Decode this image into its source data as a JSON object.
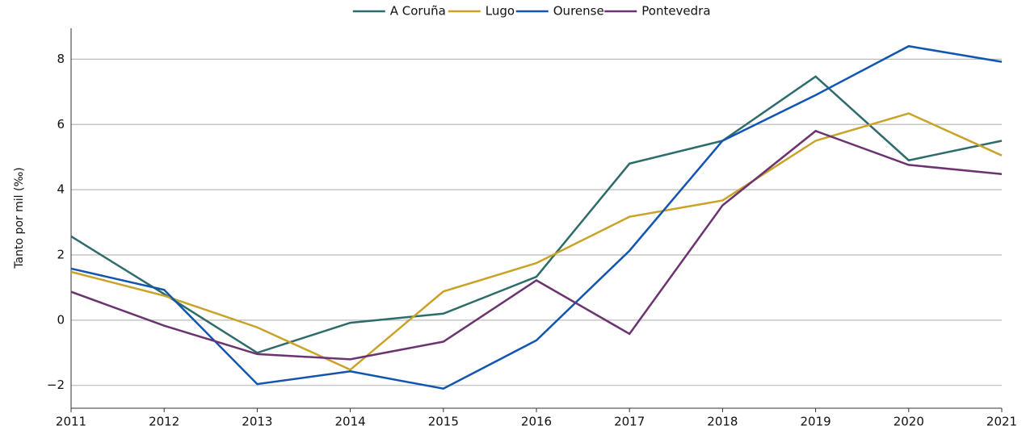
{
  "chart_data": {
    "type": "line",
    "y_label": "Tanto por mil (‰)",
    "x": [
      2011,
      2012,
      2013,
      2014,
      2015,
      2016,
      2017,
      2018,
      2019,
      2020,
      2021
    ],
    "series": [
      {
        "name": "A Coruña",
        "color": "#2e6b6b",
        "values": [
          2.57,
          0.8,
          -1.0,
          -0.08,
          0.2,
          1.33,
          4.8,
          5.5,
          7.47,
          4.9,
          5.5
        ]
      },
      {
        "name": "Lugo",
        "color": "#c9a227",
        "values": [
          1.48,
          0.75,
          -0.22,
          -1.52,
          0.88,
          1.75,
          3.17,
          3.67,
          5.5,
          6.34,
          5.05
        ]
      },
      {
        "name": "Ourense",
        "color": "#1155b0",
        "values": [
          1.58,
          0.93,
          -1.96,
          -1.57,
          -2.1,
          -0.62,
          2.13,
          5.5,
          6.9,
          8.4,
          7.92
        ]
      },
      {
        "name": "Pontevedra",
        "color": "#6b3370",
        "values": [
          0.87,
          -0.17,
          -1.04,
          -1.2,
          -0.66,
          1.22,
          -0.42,
          3.52,
          5.8,
          4.76,
          4.48
        ]
      }
    ],
    "xlim": [
      2011,
      2021
    ],
    "xticks": [
      2011,
      2012,
      2013,
      2014,
      2015,
      2016,
      2017,
      2018,
      2019,
      2020,
      2021
    ],
    "ylim": [
      -2.7,
      8.95
    ],
    "yticks": [
      {
        "value": -2,
        "label": "−2"
      },
      0,
      2,
      4,
      6,
      8
    ],
    "grid": true,
    "legend": "top"
  }
}
